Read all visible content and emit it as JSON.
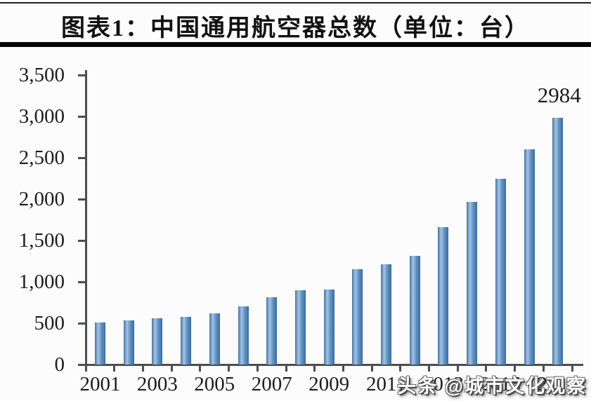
{
  "header": {
    "title": "图表1：中国通用航空器总数（单位：台）"
  },
  "chart_data": {
    "type": "bar",
    "title": "图表1：中国通用航空器总数（单位：台）",
    "unit_label": "台",
    "categories": [
      "2001",
      "2002",
      "2003",
      "2004",
      "2005",
      "2006",
      "2007",
      "2008",
      "2009",
      "2010",
      "2011",
      "2012",
      "2013",
      "2014",
      "2015",
      "2016",
      "2017"
    ],
    "values": [
      510,
      535,
      560,
      575,
      615,
      705,
      810,
      900,
      910,
      1155,
      1210,
      1310,
      1660,
      1970,
      2250,
      2600,
      2984
    ],
    "ylim": [
      0,
      3500
    ],
    "ytick_step": 500,
    "ytick_labels": [
      "0",
      "500",
      "1,000",
      "1,500",
      "2,000",
      "2,500",
      "3,000",
      "3,500"
    ],
    "xtick_labels": [
      "2001",
      "2003",
      "2005",
      "2007",
      "2009",
      "2011",
      "2013",
      "2015",
      "2017"
    ],
    "annotation": {
      "text": "2984",
      "category": "2017"
    },
    "grid": false,
    "legend_position": "none",
    "bar_color": "#5b8fc0",
    "axis_color": "#4d4d4d"
  },
  "watermark": {
    "text": "头条 @城市文化观察"
  }
}
